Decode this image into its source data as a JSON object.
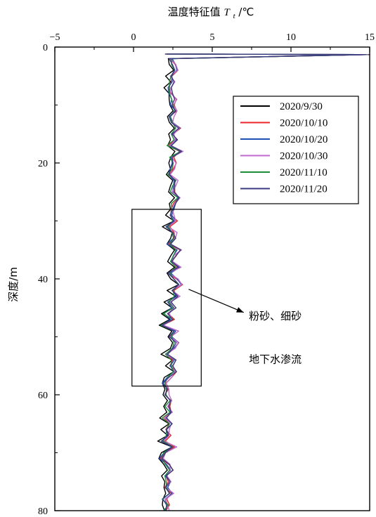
{
  "chart_data": {
    "type": "line",
    "title": "",
    "xlabel": "温度特征值",
    "xlabel_symbol": "T",
    "xlabel_subscript": "t",
    "xlabel_unit": " /℃",
    "ylabel": "深度/m",
    "xlim": [
      -5,
      15
    ],
    "ylim": [
      0,
      80
    ],
    "x_ticks": [
      -5,
      0,
      5,
      10,
      15
    ],
    "y_ticks": [
      0,
      20,
      40,
      60,
      80
    ],
    "x_axis_position": "top",
    "y_inverted": true,
    "grid": false,
    "legend_position": "top-right",
    "colors": {
      "2020/9/30": "#000000",
      "2020/10/10": "#e8252a",
      "2020/10/20": "#1f4fb5",
      "2020/10/30": "#c06ad0",
      "2020/11/10": "#1f8a3a",
      "2020/11/20": "#3a3a80"
    },
    "depths": [
      1.3,
      2,
      3,
      4,
      5,
      6,
      7,
      8,
      9,
      10,
      11,
      12,
      13,
      14,
      15,
      16,
      17,
      18,
      19,
      20,
      21,
      22,
      23,
      24,
      25,
      26,
      27,
      28,
      29,
      30,
      31,
      32,
      33,
      34,
      35,
      36,
      37,
      38,
      39,
      40,
      41,
      42,
      43,
      44,
      45,
      46,
      47,
      48,
      49,
      50,
      51,
      52,
      53,
      54,
      55,
      56,
      57,
      58,
      59,
      60,
      61,
      62,
      63,
      64,
      65,
      66,
      67,
      68,
      69,
      70,
      71,
      72,
      73,
      74,
      75,
      76,
      77,
      78,
      79,
      80
    ],
    "base_profile": [
      15.0,
      2.3,
      2.5,
      2.6,
      2.3,
      2.4,
      2.2,
      2.3,
      2.5,
      2.4,
      2.7,
      2.3,
      2.4,
      2.8,
      2.3,
      2.6,
      2.2,
      2.9,
      2.4,
      2.5,
      2.4,
      2.3,
      2.6,
      2.5,
      2.4,
      2.7,
      2.5,
      2.4,
      2.3,
      2.6,
      2.1,
      2.5,
      2.6,
      2.2,
      2.8,
      2.5,
      2.3,
      2.8,
      2.2,
      2.6,
      2.9,
      2.4,
      2.7,
      2.2,
      2.5,
      2.0,
      2.4,
      1.8,
      2.6,
      2.3,
      2.7,
      2.4,
      2.0,
      2.5,
      2.3,
      2.6,
      2.2,
      1.9,
      2.2,
      2.0,
      2.3,
      2.1,
      2.2,
      1.9,
      2.3,
      2.0,
      2.2,
      1.8,
      2.5,
      2.0,
      1.7,
      2.1,
      2.3,
      1.9,
      2.2,
      2.0,
      2.3,
      1.9,
      2.1,
      2.0
    ],
    "series": [
      {
        "name": "2020/9/30",
        "offset": -0.15
      },
      {
        "name": "2020/10/10",
        "offset": 0.1
      },
      {
        "name": "2020/10/20",
        "offset": 0.05
      },
      {
        "name": "2020/10/30",
        "offset": 0.15
      },
      {
        "name": "2020/11/10",
        "offset": 0.0
      },
      {
        "name": "2020/11/20",
        "offset": 0.08
      }
    ],
    "annotations": [
      {
        "text": "粉砂、细砂",
        "x": 9.0,
        "y": 47.0
      },
      {
        "text": "地下水渗流",
        "x": 9.0,
        "y": 54.5
      }
    ],
    "highlight_box": {
      "x": [
        -0.1,
        4.3
      ],
      "y": [
        28,
        58.5
      ]
    },
    "arrow": {
      "from": [
        3.5,
        41.8
      ],
      "to": [
        7.0,
        45.8
      ]
    }
  }
}
